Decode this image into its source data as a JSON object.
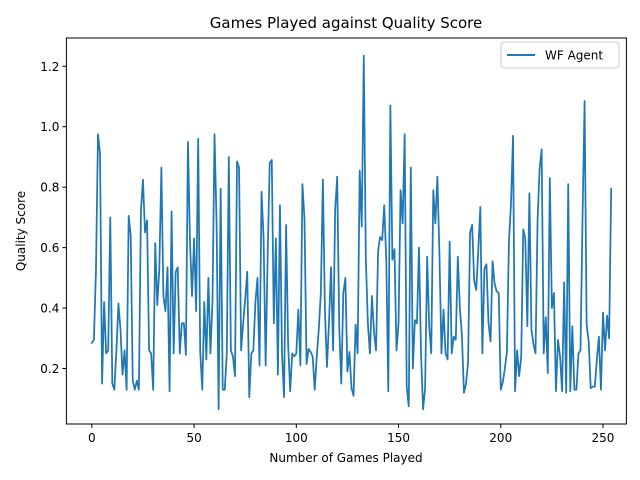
{
  "chart_data": {
    "type": "line",
    "title": "Games Played against Quality Score",
    "xlabel": "Number of Games Played",
    "ylabel": "Quality Score",
    "xlim": [
      -12.45,
      261.45
    ],
    "ylim": [
      0.0165,
      1.2935
    ],
    "xticks": [
      0,
      50,
      100,
      150,
      200,
      250
    ],
    "yticks": [
      0.2,
      0.4,
      0.6,
      0.8,
      1.0,
      1.2
    ],
    "xtick_labels": [
      "0",
      "50",
      "100",
      "150",
      "200",
      "250"
    ],
    "ytick_labels": [
      "0.2",
      "0.4",
      "0.6",
      "0.8",
      "1.0",
      "1.2"
    ],
    "grid": false,
    "legend_position": "top-right",
    "series": [
      {
        "name": "WF Agent",
        "color": "#1f77b4",
        "x_start": 0,
        "x_step": 1,
        "values": [
          0.285,
          0.295,
          0.52,
          0.975,
          0.91,
          0.15,
          0.42,
          0.25,
          0.26,
          0.7,
          0.15,
          0.13,
          0.26,
          0.415,
          0.33,
          0.18,
          0.26,
          0.13,
          0.705,
          0.64,
          0.16,
          0.13,
          0.16,
          0.13,
          0.72,
          0.825,
          0.65,
          0.69,
          0.26,
          0.25,
          0.13,
          0.615,
          0.41,
          0.53,
          0.865,
          0.44,
          0.39,
          0.535,
          0.125,
          0.72,
          0.25,
          0.52,
          0.535,
          0.25,
          0.35,
          0.35,
          0.245,
          0.95,
          0.62,
          0.44,
          0.63,
          0.39,
          0.96,
          0.255,
          0.13,
          0.42,
          0.23,
          0.5,
          0.25,
          0.42,
          0.975,
          0.68,
          0.065,
          0.795,
          0.13,
          0.13,
          0.25,
          0.9,
          0.26,
          0.24,
          0.175,
          0.885,
          0.865,
          0.26,
          0.35,
          0.43,
          0.52,
          0.105,
          0.25,
          0.26,
          0.42,
          0.5,
          0.21,
          0.785,
          0.63,
          0.21,
          0.58,
          0.88,
          0.89,
          0.35,
          0.63,
          0.18,
          0.74,
          0.25,
          0.105,
          0.675,
          0.28,
          0.125,
          0.25,
          0.24,
          0.25,
          0.395,
          0.21,
          0.81,
          0.695,
          0.215,
          0.265,
          0.255,
          0.24,
          0.13,
          0.24,
          0.33,
          0.45,
          0.825,
          0.39,
          0.205,
          0.355,
          0.535,
          0.26,
          0.725,
          0.835,
          0.335,
          0.15,
          0.45,
          0.5,
          0.19,
          0.255,
          0.135,
          0.11,
          0.345,
          0.25,
          0.855,
          0.67,
          1.235,
          0.565,
          0.35,
          0.25,
          0.44,
          0.32,
          0.26,
          0.59,
          0.635,
          0.625,
          0.74,
          0.56,
          0.125,
          1.07,
          0.56,
          0.595,
          0.26,
          0.35,
          0.79,
          0.68,
          0.975,
          0.14,
          0.075,
          0.865,
          0.2,
          0.36,
          0.35,
          0.6,
          0.25,
          0.065,
          0.135,
          0.57,
          0.34,
          0.25,
          0.79,
          0.68,
          0.835,
          0.58,
          0.25,
          0.395,
          0.25,
          0.23,
          0.62,
          0.25,
          0.305,
          0.295,
          0.57,
          0.4,
          0.31,
          0.12,
          0.15,
          0.22,
          0.65,
          0.675,
          0.49,
          0.46,
          0.59,
          0.735,
          0.25,
          0.53,
          0.545,
          0.35,
          0.29,
          0.555,
          0.48,
          0.455,
          0.45,
          0.13,
          0.155,
          0.2,
          0.255,
          0.62,
          0.745,
          0.97,
          0.125,
          0.26,
          0.175,
          0.24,
          0.66,
          0.63,
          0.34,
          0.78,
          0.33,
          0.28,
          0.25,
          0.69,
          0.86,
          0.925,
          0.25,
          0.37,
          0.185,
          0.83,
          0.4,
          0.45,
          0.125,
          0.295,
          0.24,
          0.125,
          0.485,
          0.12,
          0.81,
          0.125,
          0.34,
          0.13,
          0.13,
          0.25,
          0.26,
          0.7,
          1.085,
          0.345,
          0.29,
          0.135,
          0.14,
          0.14,
          0.23,
          0.305,
          0.13,
          0.385,
          0.26,
          0.375,
          0.3,
          0.795
        ]
      }
    ]
  }
}
